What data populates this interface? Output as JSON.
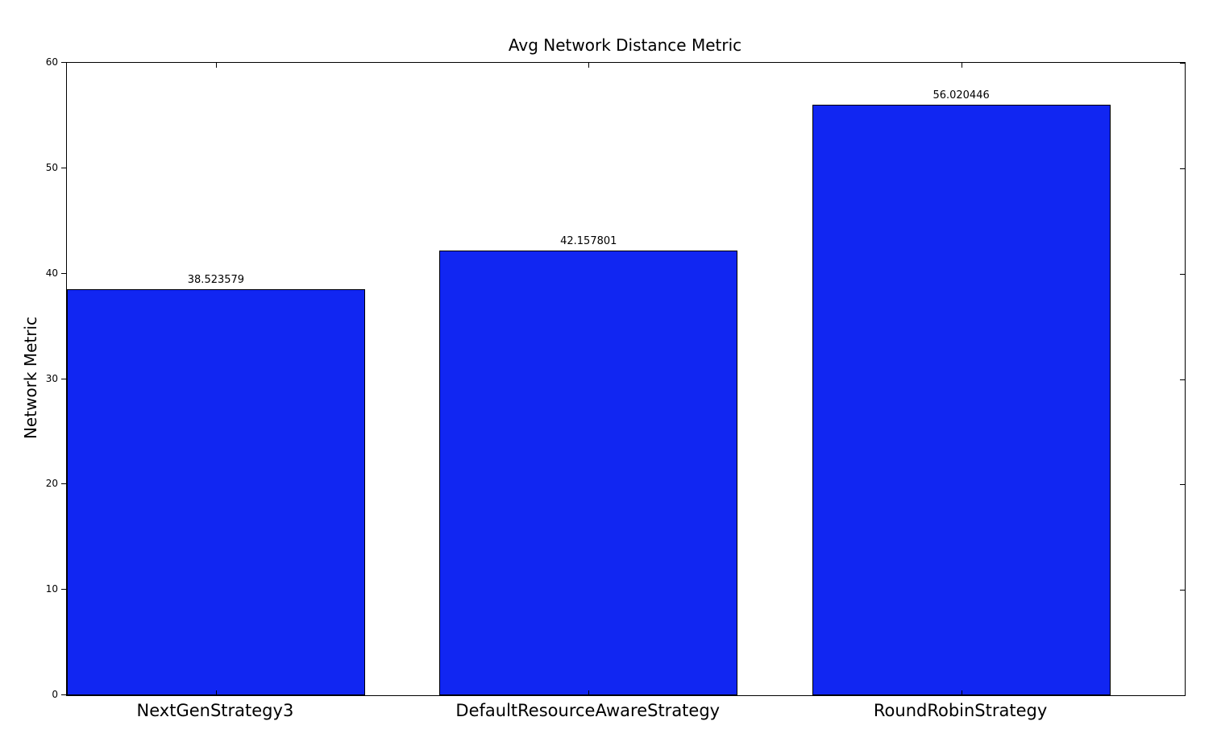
{
  "chart_data": {
    "type": "bar",
    "title": "Avg Network Distance Metric",
    "xlabel": "",
    "ylabel": "Network Metric",
    "categories": [
      "NextGenStrategy3",
      "DefaultResourceAwareStrategy",
      "RoundRobinStrategy"
    ],
    "values": [
      38.523579,
      42.157801,
      56.020446
    ],
    "value_labels": [
      "38.523579",
      "42.157801",
      "56.020446"
    ],
    "ylim": [
      0,
      60
    ],
    "yticks": [
      0,
      10,
      20,
      30,
      40,
      50,
      60
    ],
    "xlim": [
      0,
      3
    ],
    "bar_width_fraction": 0.8,
    "grid": false,
    "legend": "none",
    "colors": {
      "bar_fill": "#1126f2",
      "bar_edge": "#000000",
      "axis": "#000000",
      "text": "#000000",
      "background": "#ffffff"
    }
  }
}
